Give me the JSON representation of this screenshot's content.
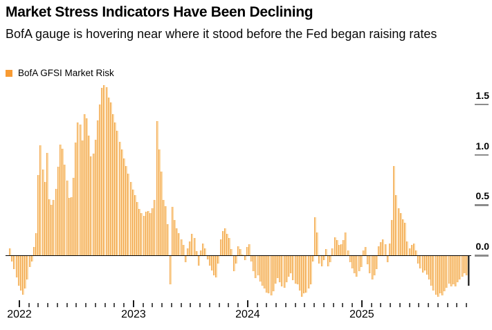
{
  "header": {
    "title": "Market Stress Indicators Have Been Declining",
    "subtitle": "BofA gauge is hovering near where it stood before the Fed began raising rates"
  },
  "legend": {
    "label": "BofA GFSI Market Risk",
    "swatch_color": "#F89B33"
  },
  "chart_data": {
    "type": "bar",
    "title": "Market Stress Indicators Have Been Declining",
    "subtitle": "BofA gauge is hovering near where it stood before the Fed began raising rates",
    "grid": "none",
    "legend_position": "top-left",
    "x_axis": {
      "tick_years": [
        "2022",
        "2023",
        "2024",
        "2025"
      ],
      "minor_ticks": "monthly"
    },
    "y_axis": {
      "side": "right",
      "ticks": [
        "0.0",
        "0.5",
        "1.0",
        "1.5"
      ],
      "tick_values": [
        0,
        0.5,
        1.0,
        1.5
      ],
      "ylim": [
        -0.45,
        1.72
      ]
    },
    "colors": {
      "bar_fill": "#FBD7A2",
      "bar_edge": "#F2A64B",
      "last_bar_dark": "#2e2e2e",
      "last_bar_light": "#9a9a9a",
      "zero_line": "#000000",
      "y_tick": "#8c8c8c"
    },
    "highlight_last_bar": true,
    "series": [
      {
        "name": "BofA GFSI Market Risk",
        "values": [
          0.07,
          -0.06,
          -0.14,
          -0.22,
          -0.3,
          -0.35,
          -0.39,
          -0.33,
          -0.24,
          -0.12,
          -0.06,
          0.08,
          0.22,
          0.8,
          1.09,
          0.85,
          0.73,
          1.02,
          0.56,
          0.5,
          0.55,
          0.66,
          0.88,
          1.1,
          1.06,
          0.9,
          0.74,
          0.57,
          0.58,
          0.77,
          1.12,
          1.32,
          1.3,
          1.14,
          1.4,
          1.36,
          1.19,
          0.98,
          1.01,
          1.15,
          1.34,
          1.5,
          1.66,
          1.69,
          1.67,
          1.57,
          1.52,
          1.4,
          1.32,
          1.24,
          1.13,
          1.05,
          0.96,
          0.89,
          0.81,
          0.73,
          0.65,
          0.6,
          0.53,
          0.46,
          0.42,
          0.39,
          0.43,
          0.44,
          0.42,
          0.47,
          0.55,
          1.33,
          1.05,
          0.83,
          0.55,
          0.49,
          0.31,
          -0.29,
          0.48,
          0.35,
          0.27,
          0.22,
          0.16,
          0.1,
          -0.07,
          0.07,
          0.14,
          0.21,
          0.17,
          0.04,
          -0.1,
          0.05,
          0.12,
          0.07,
          -0.04,
          -0.1,
          -0.15,
          -0.2,
          -0.22,
          -0.08,
          0.16,
          0.24,
          0.27,
          0.21,
          0.17,
          0.06,
          -0.16,
          -0.08,
          0.09,
          0.06,
          0.01,
          -0.05,
          0.08,
          0.11,
          -0.06,
          -0.16,
          -0.23,
          -0.2,
          -0.26,
          -0.3,
          -0.33,
          -0.37,
          -0.38,
          -0.4,
          -0.36,
          -0.28,
          -0.23,
          -0.27,
          -0.31,
          -0.32,
          -0.27,
          -0.21,
          -0.18,
          -0.25,
          -0.28,
          -0.29,
          -0.35,
          -0.41,
          -0.38,
          -0.37,
          -0.33,
          -0.29,
          -0.06,
          0.38,
          0.23,
          -0.08,
          -0.11,
          -0.05,
          0.06,
          -0.11,
          -0.07,
          0.07,
          0.18,
          0.15,
          0.1,
          0.11,
          0.15,
          0.23,
          0.05,
          -0.07,
          -0.13,
          -0.18,
          -0.21,
          -0.16,
          -0.12,
          0.05,
          0.08,
          -0.09,
          -0.18,
          -0.24,
          -0.2,
          -0.14,
          0.09,
          0.13,
          0.16,
          0.11,
          -0.07,
          0.12,
          0.35,
          0.89,
          0.6,
          0.47,
          0.42,
          0.36,
          0.32,
          0.14,
          0.07,
          0.1,
          0.12,
          0.05,
          -0.08,
          -0.13,
          -0.17,
          -0.15,
          -0.19,
          -0.24,
          -0.3,
          -0.35,
          -0.39,
          -0.41,
          -0.38,
          -0.4,
          -0.36,
          -0.32,
          -0.28,
          -0.31,
          -0.29,
          -0.31,
          -0.27,
          -0.24,
          -0.21,
          -0.18,
          -0.2,
          -0.3
        ]
      }
    ]
  }
}
